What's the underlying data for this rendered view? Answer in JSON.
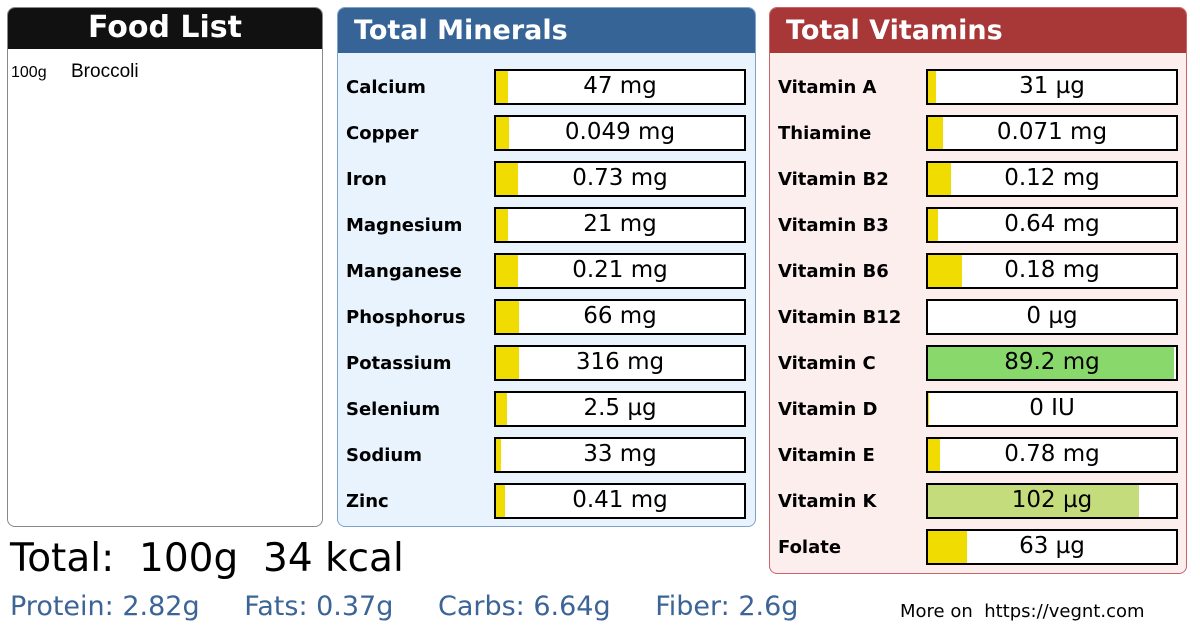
{
  "food_list": {
    "title": "Food List",
    "items": [
      {
        "qty": "100g",
        "name": "Broccoli"
      }
    ]
  },
  "minerals": {
    "title": "Total Minerals",
    "fill_color": "#f0dc00",
    "items": [
      {
        "label": "Calcium",
        "value": "47 mg",
        "level": 0.047
      },
      {
        "label": "Copper",
        "value": "0.049 mg",
        "level": 0.054
      },
      {
        "label": "Iron",
        "value": "0.73 mg",
        "level": 0.09
      },
      {
        "label": "Magnesium",
        "value": "21 mg",
        "level": 0.05
      },
      {
        "label": "Manganese",
        "value": "0.21 mg",
        "level": 0.09
      },
      {
        "label": "Phosphorus",
        "value": "66 mg",
        "level": 0.094
      },
      {
        "label": "Potassium",
        "value": "316 mg",
        "level": 0.093
      },
      {
        "label": "Selenium",
        "value": "2.5 µg",
        "level": 0.045
      },
      {
        "label": "Sodium",
        "value": "33 mg",
        "level": 0.022
      },
      {
        "label": "Zinc",
        "value": "0.41 mg",
        "level": 0.037
      }
    ]
  },
  "vitamins": {
    "title": "Total Vitamins",
    "items": [
      {
        "label": "Vitamin A",
        "value": "31 µg",
        "level": 0.034,
        "color": "#f0dc00"
      },
      {
        "label": "Thiamine",
        "value": "0.071 mg",
        "level": 0.059,
        "color": "#f0dc00"
      },
      {
        "label": "Vitamin B2",
        "value": "0.12 mg",
        "level": 0.092,
        "color": "#f0dc00"
      },
      {
        "label": "Vitamin B3",
        "value": "0.64 mg",
        "level": 0.04,
        "color": "#f0dc00"
      },
      {
        "label": "Vitamin B6",
        "value": "0.18 mg",
        "level": 0.138,
        "color": "#f0dc00"
      },
      {
        "label": "Vitamin B12",
        "value": "0 µg",
        "level": 0,
        "color": "#f0dc00"
      },
      {
        "label": "Vitamin C",
        "value": "89.2 mg",
        "level": 0.99,
        "color": "#88d86c"
      },
      {
        "label": "Vitamin D",
        "value": "0 IU",
        "level": 0.005,
        "color": "#f0dc00"
      },
      {
        "label": "Vitamin E",
        "value": "0.78 mg",
        "level": 0.05,
        "color": "#f0dc00"
      },
      {
        "label": "Vitamin K",
        "value": "102 µg",
        "level": 0.85,
        "color": "#c4dc7c"
      },
      {
        "label": "Folate",
        "value": "63 µg",
        "level": 0.158,
        "color": "#f0dc00"
      }
    ]
  },
  "totals": {
    "line": "Total:  100g  34 kcal",
    "protein": "Protein: 2.82g",
    "fats": "Fats: 0.37g",
    "carbs": "Carbs: 6.64g",
    "fiber": "Fiber: 2.6g",
    "credit": "More on  https://vegnt.com"
  }
}
